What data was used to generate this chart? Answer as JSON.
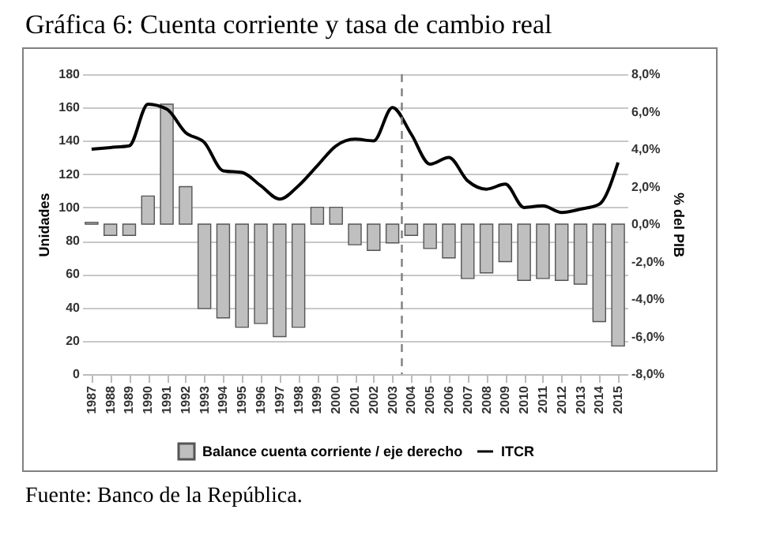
{
  "chart_data": {
    "type": "bar",
    "title": "Gráfica 6: Cuenta corriente y tasa de cambio real",
    "ylabel": "Unidades",
    "y2label": "% del PIB",
    "x": [
      1987,
      1988,
      1989,
      1990,
      1991,
      1992,
      1993,
      1994,
      1995,
      1996,
      1997,
      1998,
      1999,
      2000,
      2001,
      2002,
      2003,
      2004,
      2005,
      2006,
      2007,
      2008,
      2009,
      2010,
      2011,
      2012,
      2013,
      2014,
      2015
    ],
    "xlim": [
      1986.5,
      2015.5
    ],
    "xticks": [
      1987,
      1988,
      1989,
      1990,
      1991,
      1992,
      1993,
      1994,
      1995,
      1996,
      1997,
      1998,
      1999,
      2000,
      2001,
      2002,
      2003,
      2004,
      2005,
      2006,
      2007,
      2008,
      2009,
      2010,
      2011,
      2012,
      2013,
      2014,
      2015
    ],
    "ylim": [
      0,
      180
    ],
    "yticks": [
      0,
      20,
      40,
      60,
      80,
      100,
      120,
      140,
      160,
      180
    ],
    "y2lim": [
      -8,
      8
    ],
    "y2ticks": [
      {
        "value": -8,
        "label": "-8,0%"
      },
      {
        "value": -6,
        "label": "-6,0%"
      },
      {
        "value": -4,
        "label": "-4,0%"
      },
      {
        "value": -2,
        "label": "-2,0%"
      },
      {
        "value": 0,
        "label": "0,0%"
      },
      {
        "value": 2,
        "label": "2,0%"
      },
      {
        "value": 4,
        "label": "4,0%"
      },
      {
        "value": 6,
        "label": "6,0%"
      },
      {
        "value": 8,
        "label": "8,0%"
      }
    ],
    "series": [
      {
        "name": "Balance cuenta corriente / eje derecho",
        "axis": "y2",
        "color": "#bfbfbf",
        "values": [
          0.1,
          -0.6,
          -0.6,
          1.5,
          6.4,
          2.0,
          -4.5,
          -5.0,
          -5.5,
          -5.3,
          -6.0,
          -5.5,
          0.9,
          0.9,
          -1.1,
          -1.4,
          -1.0,
          -0.6,
          -1.3,
          -1.8,
          -2.9,
          -2.6,
          -2.0,
          -3.0,
          -2.9,
          -3.0,
          -3.2,
          -5.2,
          -6.5
        ]
      },
      {
        "name": "ITCR",
        "type": "line",
        "color": "#000000",
        "values": [
          135,
          136,
          137,
          162,
          159,
          145,
          139,
          122,
          121,
          113,
          105,
          113,
          125,
          137,
          141,
          140,
          160,
          144,
          126,
          130,
          116,
          111,
          114,
          100,
          101,
          97,
          99,
          102,
          127
        ]
      }
    ],
    "ref_lines": [
      {
        "axis": "x",
        "value": 2003.5,
        "line_style": "dashed",
        "color": "#7f7f7f"
      }
    ],
    "grid": "y",
    "legend": "bottom",
    "annotations": [
      "Fuente: Banco de la República."
    ]
  }
}
